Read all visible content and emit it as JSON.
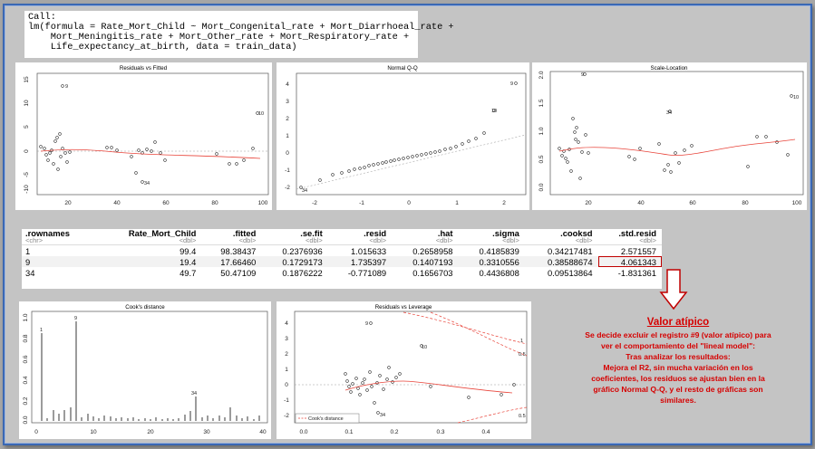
{
  "call": {
    "lines": [
      "Call:",
      "lm(formula = Rate_Mort_Child ~ Mort_Congenital_rate + Mort_Diarrhoeal_rate +",
      "    Mort_Meningitis_rate + Mort_Other_rate + Mort_Respiratory_rate +",
      "    Life_expectancy_at_birth, data = train_data)"
    ]
  },
  "plots": {
    "resid_fitted": {
      "title": "Residuals vs Fitted",
      "x_ticks": [
        "20",
        "40",
        "60",
        "80",
        "100"
      ],
      "y_ticks": [
        "15",
        "10",
        "5",
        "0",
        "-5",
        "-10"
      ],
      "labels": [
        "9",
        "10",
        "34"
      ]
    },
    "qq": {
      "title": "Normal Q-Q",
      "x_ticks": [
        "-2",
        "-1",
        "0",
        "1",
        "2"
      ],
      "y_ticks": [
        "4",
        "3",
        "2",
        "1",
        "0",
        "-1",
        "-2"
      ],
      "labels": [
        "9",
        "10",
        "34"
      ]
    },
    "scale_location": {
      "title": "Scale-Location",
      "x_ticks": [
        "20",
        "40",
        "60",
        "80",
        "100"
      ],
      "y_ticks": [
        "2.0",
        "1.5",
        "1.0",
        "0.5",
        "0.0"
      ],
      "labels": [
        "9",
        "34",
        "10"
      ]
    },
    "cooks": {
      "title": "Cook's distance",
      "x_ticks": [
        "0",
        "10",
        "20",
        "30",
        "40"
      ],
      "y_ticks": [
        "1.0",
        "0.8",
        "0.6",
        "0.4",
        "0.2",
        "0.0"
      ],
      "labels": [
        "1",
        "9",
        "34"
      ]
    },
    "leverage": {
      "title": "Residuals vs Leverage",
      "x_ticks": [
        "0.0",
        "0.1",
        "0.2",
        "0.3",
        "0.4"
      ],
      "y_ticks": [
        "4",
        "3",
        "2",
        "1",
        "0",
        "-1",
        "-2"
      ],
      "labels": [
        "9",
        "10",
        "34",
        "1",
        "0.5",
        "0.5",
        "1"
      ],
      "legend": "Cook's distance"
    }
  },
  "table": {
    "columns": [
      {
        "name": ".rownames",
        "type": "<chr>"
      },
      {
        "name": "Rate_Mort_Child",
        "type": "<dbl>"
      },
      {
        "name": ".fitted",
        "type": "<dbl>"
      },
      {
        "name": ".se.fit",
        "type": "<dbl>"
      },
      {
        "name": ".resid",
        "type": "<dbl>"
      },
      {
        "name": ".hat",
        "type": "<dbl>"
      },
      {
        "name": ".sigma",
        "type": "<dbl>"
      },
      {
        "name": ".cooksd",
        "type": "<dbl>"
      },
      {
        "name": ".std.resid",
        "type": "<dbl>"
      }
    ],
    "rows": [
      [
        "1",
        "99.4",
        "98.38437",
        "0.2376936",
        "1.015633",
        "0.2658958",
        "0.4185839",
        "0.34217481",
        "2.571557"
      ],
      [
        "9",
        "19.4",
        "17.66460",
        "0.1729173",
        "1.735397",
        "0.1407193",
        "0.3310556",
        "0.38588674",
        "4.061343"
      ],
      [
        "34",
        "49.7",
        "50.47109",
        "0.1876222",
        "-0.771089",
        "0.1656703",
        "0.4436808",
        "0.09513864",
        "-1.831361"
      ]
    ]
  },
  "note": {
    "title": "Valor atípico",
    "lines": [
      "Se decide excluir el registro #9 (valor atípico) para",
      "ver el comportamiento del \"lineal model\":",
      "Tras analizar los resultados:",
      "Mejora el R2, sin mucha variación en los",
      "coeficientes, los residuos se ajustan bien en la",
      "gráfico Normal Q-Q, y el resto de gráficas son",
      "similares."
    ]
  },
  "colors": {
    "highlight": "#c00000",
    "note_text": "#d60000",
    "frame_border": "#3a68b4",
    "smoother": "#e8443a"
  }
}
